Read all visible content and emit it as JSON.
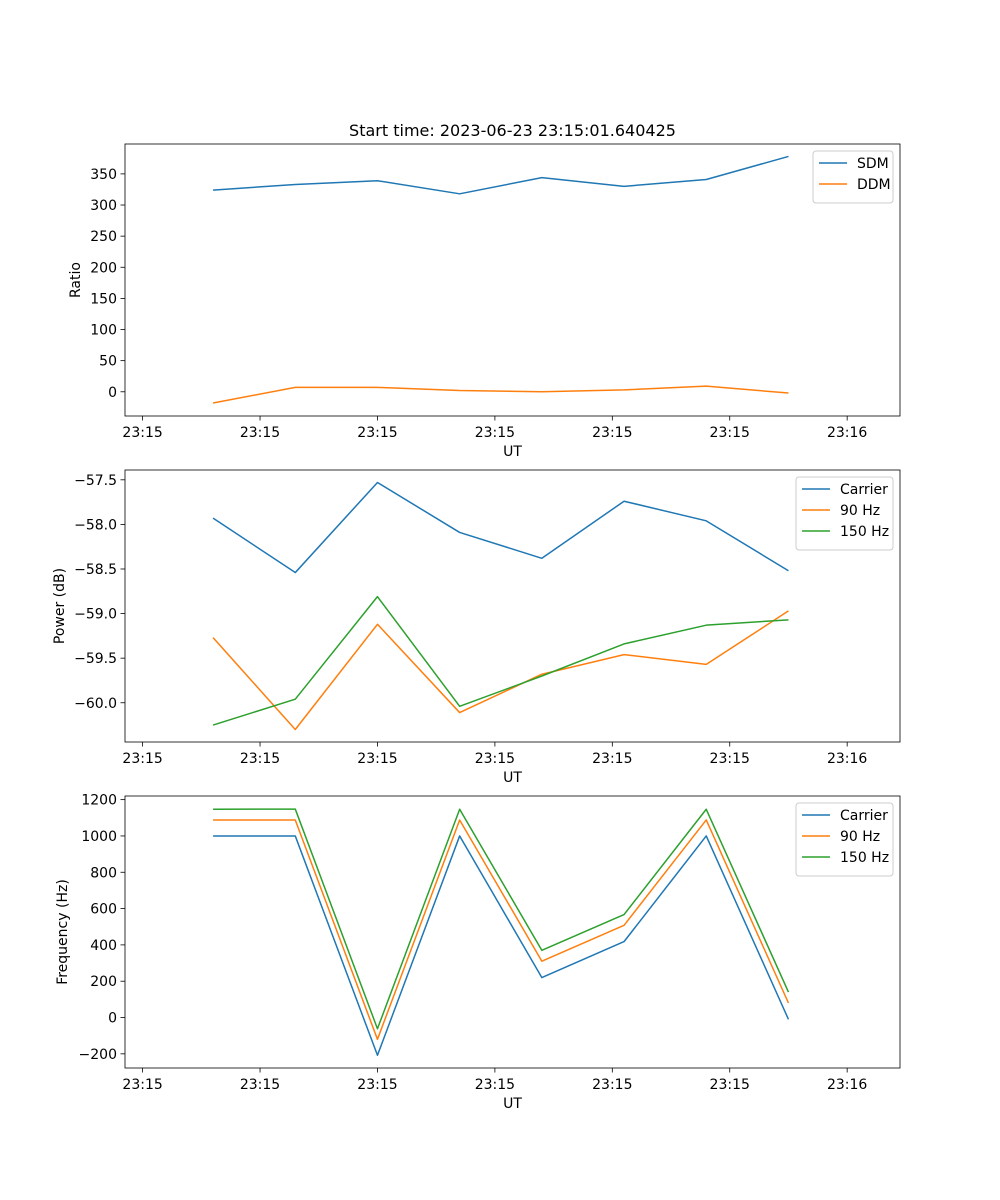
{
  "figure": {
    "title": "Start time: 2023-06-23 23:15:01.640425"
  },
  "chart_data": [
    {
      "type": "line",
      "title": "Start time: 2023-06-23 23:15:01.640425",
      "xlabel": "UT",
      "ylabel": "Ratio",
      "x": [
        0.26,
        0.4,
        0.54,
        0.68,
        0.82,
        0.96,
        1.1,
        1.24
      ],
      "xlim": [
        0.11,
        1.43
      ],
      "x_ticks": [
        0.14,
        0.34,
        0.54,
        0.74,
        0.94,
        1.14,
        1.34
      ],
      "x_tick_labels": [
        "23:15",
        "23:15",
        "23:15",
        "23:15",
        "23:15",
        "23:15",
        "23:16"
      ],
      "ylim": [
        -38.9,
        398
      ],
      "y_ticks": [
        0,
        50,
        100,
        150,
        200,
        250,
        300,
        350
      ],
      "y_tick_labels": [
        "0",
        "50",
        "100",
        "150",
        "200",
        "250",
        "300",
        "350"
      ],
      "legend": "top-right",
      "series": [
        {
          "name": "SDM",
          "color": "#1f77b4",
          "values": [
            324,
            333,
            339,
            318,
            344,
            330,
            341,
            378
          ]
        },
        {
          "name": "DDM",
          "color": "#ff7f0e",
          "values": [
            -18,
            7,
            7,
            2,
            0,
            3,
            9,
            -2
          ]
        }
      ]
    },
    {
      "type": "line",
      "xlabel": "UT",
      "ylabel": "Power (dB)",
      "x": [
        0.26,
        0.4,
        0.54,
        0.68,
        0.82,
        0.96,
        1.1,
        1.24
      ],
      "xlim": [
        0.11,
        1.43
      ],
      "x_ticks": [
        0.14,
        0.34,
        0.54,
        0.74,
        0.94,
        1.14,
        1.34
      ],
      "x_tick_labels": [
        "23:15",
        "23:15",
        "23:15",
        "23:15",
        "23:15",
        "23:15",
        "23:16"
      ],
      "ylim": [
        -60.44,
        -57.39
      ],
      "y_ticks": [
        -60.0,
        -59.5,
        -59.0,
        -58.5,
        -58.0,
        -57.5
      ],
      "y_tick_labels": [
        "−60.0",
        "−59.5",
        "−59.0",
        "−58.5",
        "−58.0",
        "−57.5"
      ],
      "legend": "top-right",
      "series": [
        {
          "name": "Carrier",
          "color": "#1f77b4",
          "values": [
            -57.93,
            -58.54,
            -57.53,
            -58.09,
            -58.38,
            -57.74,
            -57.96,
            -58.52
          ]
        },
        {
          "name": "90 Hz",
          "color": "#ff7f0e",
          "values": [
            -59.27,
            -60.3,
            -59.12,
            -60.11,
            -59.68,
            -59.46,
            -59.57,
            -58.97
          ]
        },
        {
          "name": "150 Hz",
          "color": "#2ca02c",
          "values": [
            -60.25,
            -59.96,
            -58.81,
            -60.04,
            -59.7,
            -59.34,
            -59.13,
            -59.07
          ]
        }
      ]
    },
    {
      "type": "line",
      "xlabel": "UT",
      "ylabel": "Frequency (Hz)",
      "x": [
        0.26,
        0.4,
        0.54,
        0.68,
        0.82,
        0.96,
        1.1,
        1.24
      ],
      "xlim": [
        0.11,
        1.43
      ],
      "x_ticks": [
        0.14,
        0.34,
        0.54,
        0.74,
        0.94,
        1.14,
        1.34
      ],
      "x_tick_labels": [
        "23:15",
        "23:15",
        "23:15",
        "23:15",
        "23:15",
        "23:15",
        "23:16"
      ],
      "ylim": [
        -278,
        1220
      ],
      "y_ticks": [
        -200,
        0,
        200,
        400,
        600,
        800,
        1000,
        1200
      ],
      "y_tick_labels": [
        "−200",
        "0",
        "200",
        "400",
        "600",
        "800",
        "1000",
        "1200"
      ],
      "legend": "top-right",
      "series": [
        {
          "name": "Carrier",
          "color": "#1f77b4",
          "values": [
            1000,
            1000,
            -208,
            1000,
            220,
            418,
            1000,
            -10
          ]
        },
        {
          "name": "90 Hz",
          "color": "#ff7f0e",
          "values": [
            1088,
            1088,
            -120,
            1088,
            310,
            508,
            1088,
            80
          ]
        },
        {
          "name": "150 Hz",
          "color": "#2ca02c",
          "values": [
            1147,
            1148,
            -62,
            1147,
            370,
            567,
            1147,
            140
          ]
        }
      ]
    }
  ]
}
